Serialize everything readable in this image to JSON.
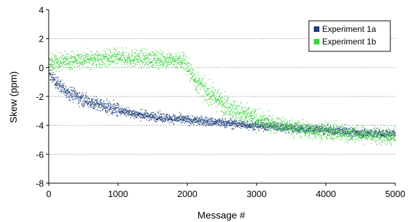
{
  "chart_data": {
    "type": "scatter",
    "xlabel": "Message #",
    "ylabel": "Skew (ppm)",
    "xlim": [
      0,
      5000
    ],
    "ylim": [
      -8,
      4
    ],
    "xticks": [
      0,
      1000,
      2000,
      3000,
      4000,
      5000
    ],
    "yticks": [
      -8,
      -6,
      -4,
      -2,
      0,
      2,
      4
    ],
    "xtick_labels": [
      "0",
      "1000",
      "2000",
      "3000",
      "4000",
      "5000"
    ],
    "ytick_labels": [
      "-8",
      "-6",
      "-4",
      "-2",
      "0",
      "2",
      "4"
    ],
    "grid": "horizontal dashed",
    "legend_position": "top-right",
    "series": [
      {
        "name": "Experiment 1a",
        "color": "#1f3f7a",
        "x": [
          0,
          100,
          250,
          500,
          750,
          1000,
          1250,
          1500,
          1750,
          2000,
          2250,
          2500,
          2750,
          3000,
          3250,
          3500,
          3750,
          4000,
          4250,
          4500,
          4750,
          5000
        ],
        "y": [
          -0.3,
          -1.0,
          -1.6,
          -2.2,
          -2.6,
          -2.9,
          -3.2,
          -3.35,
          -3.5,
          -3.6,
          -3.7,
          -3.8,
          -3.9,
          -4.0,
          -4.05,
          -4.15,
          -4.25,
          -4.3,
          -4.4,
          -4.5,
          -4.55,
          -4.6
        ]
      },
      {
        "name": "Experiment 1b",
        "color": "#3ed43e",
        "x": [
          0,
          100,
          250,
          500,
          750,
          1000,
          1250,
          1500,
          1750,
          1950,
          2100,
          2250,
          2500,
          2750,
          3000,
          3250,
          3500,
          3750,
          4000,
          4250,
          4500,
          4750,
          5000
        ],
        "y": [
          0.3,
          0.4,
          0.5,
          0.6,
          0.65,
          0.7,
          0.65,
          0.6,
          0.55,
          0.5,
          -0.8,
          -1.6,
          -2.4,
          -3.1,
          -3.6,
          -3.9,
          -4.1,
          -4.3,
          -4.4,
          -4.5,
          -4.6,
          -4.7,
          -4.8
        ]
      }
    ]
  }
}
